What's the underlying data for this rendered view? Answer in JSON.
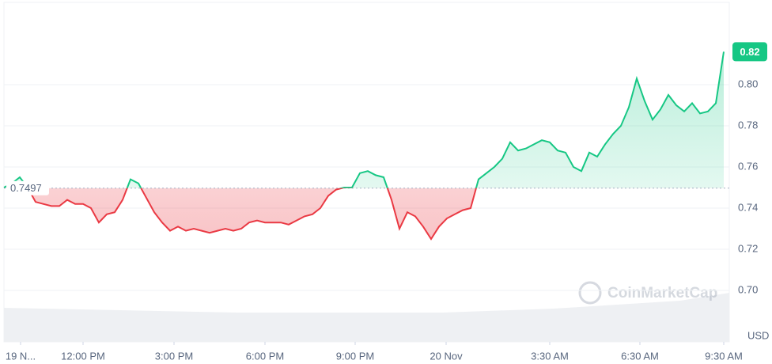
{
  "chart_data": {
    "type": "line",
    "values": [
      0.75,
      0.752,
      0.755,
      0.75,
      0.743,
      0.742,
      0.741,
      0.741,
      0.744,
      0.742,
      0.742,
      0.74,
      0.733,
      0.737,
      0.738,
      0.744,
      0.754,
      0.752,
      0.745,
      0.738,
      0.733,
      0.729,
      0.731,
      0.729,
      0.73,
      0.729,
      0.728,
      0.729,
      0.73,
      0.729,
      0.73,
      0.733,
      0.734,
      0.733,
      0.733,
      0.733,
      0.732,
      0.734,
      0.736,
      0.737,
      0.74,
      0.746,
      0.749,
      0.75,
      0.75,
      0.757,
      0.758,
      0.756,
      0.755,
      0.744,
      0.73,
      0.738,
      0.736,
      0.731,
      0.725,
      0.731,
      0.735,
      0.737,
      0.739,
      0.74,
      0.754,
      0.757,
      0.76,
      0.764,
      0.772,
      0.768,
      0.769,
      0.771,
      0.773,
      0.772,
      0.768,
      0.767,
      0.76,
      0.758,
      0.767,
      0.765,
      0.771,
      0.776,
      0.78,
      0.789,
      0.803,
      0.792,
      0.783,
      0.788,
      0.795,
      0.79,
      0.787,
      0.791,
      0.786,
      0.787,
      0.791,
      0.816
    ],
    "up_color": "#16c784",
    "down_color": "#ea3943",
    "baseline": {
      "value": 0.7497,
      "label": "0.7497"
    },
    "current": {
      "value": 0.816,
      "label": "0.82"
    },
    "xlim": [
      0,
      91.7
    ],
    "xticks": [
      {
        "value": 2.1,
        "label": "19 N..."
      },
      {
        "value": 10,
        "label": "12:00 PM"
      },
      {
        "value": 21.5,
        "label": "3:00 PM"
      },
      {
        "value": 33,
        "label": "6:00 PM"
      },
      {
        "value": 44.4,
        "label": "9:00 PM"
      },
      {
        "value": 55.9,
        "label": "20 Nov"
      },
      {
        "value": 69,
        "label": "3:30 AM"
      },
      {
        "value": 80.4,
        "label": "6:30 AM"
      },
      {
        "value": 91,
        "label": "9:30 AM"
      }
    ],
    "ylim": [
      0.675,
      0.84
    ],
    "yticks": [
      {
        "value": 0.7,
        "label": "0.70"
      },
      {
        "value": 0.72,
        "label": "0.72"
      },
      {
        "value": 0.74,
        "label": "0.74"
      },
      {
        "value": 0.76,
        "label": "0.76"
      },
      {
        "value": 0.78,
        "label": "0.78"
      },
      {
        "value": 0.8,
        "label": "0.80"
      }
    ],
    "y_unit": "USD",
    "watermark": "CoinMarketCap",
    "grid": true
  }
}
